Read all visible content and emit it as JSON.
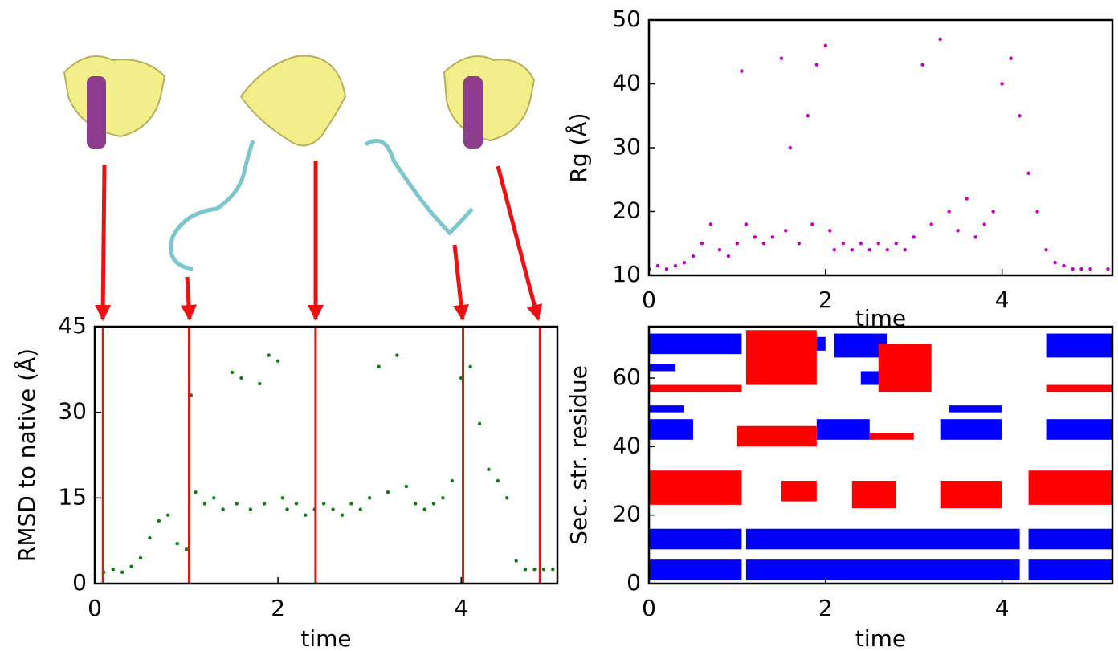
{
  "chart_data": [
    {
      "type": "scatter",
      "ylabel": "Rg (Å)",
      "xlabel": "time",
      "color": "#c000c0",
      "xlim": [
        0,
        5.25
      ],
      "xticks": [
        0,
        2,
        4
      ],
      "ylim": [
        10,
        50
      ],
      "yticks": [
        10,
        20,
        30,
        40,
        50
      ],
      "x": [
        0,
        0.1,
        0.2,
        0.3,
        0.4,
        0.5,
        0.6,
        0.7,
        0.8,
        0.9,
        1.0,
        1.05,
        1.1,
        1.2,
        1.3,
        1.4,
        1.5,
        1.55,
        1.6,
        1.7,
        1.8,
        1.85,
        1.9,
        2.0,
        2.05,
        2.1,
        2.2,
        2.3,
        2.4,
        2.5,
        2.6,
        2.7,
        2.8,
        2.9,
        3.0,
        3.1,
        3.2,
        3.3,
        3.4,
        3.5,
        3.6,
        3.7,
        3.8,
        3.9,
        4.0,
        4.1,
        4.2,
        4.3,
        4.4,
        4.5,
        4.6,
        4.7,
        4.8,
        4.9,
        5.0,
        5.2
      ],
      "values": [
        11,
        11.5,
        11,
        11.5,
        12,
        13,
        15,
        18,
        14,
        13,
        15,
        42,
        18,
        16,
        15,
        16,
        44,
        17,
        30,
        15,
        35,
        18,
        43,
        46,
        17,
        14,
        15,
        14,
        15,
        14,
        15,
        14,
        15,
        14,
        16,
        43,
        18,
        47,
        20,
        17,
        22,
        16,
        18,
        20,
        40,
        44,
        35,
        26,
        20,
        14,
        12,
        11.5,
        11,
        11,
        11,
        11
      ]
    },
    {
      "type": "scatter",
      "ylabel": "RMSD to native (Å)",
      "xlabel": "time",
      "color": "#117a11",
      "xlim": [
        0,
        5.05
      ],
      "xticks": [
        0,
        2,
        4
      ],
      "ylim": [
        0,
        45
      ],
      "yticks": [
        0,
        15,
        30,
        45
      ],
      "vlines": [
        0.09,
        1.03,
        2.41,
        4.02,
        4.86
      ],
      "vline_color": "#ee1111",
      "x": [
        0,
        0.1,
        0.2,
        0.3,
        0.4,
        0.5,
        0.6,
        0.7,
        0.8,
        0.9,
        1.0,
        1.05,
        1.1,
        1.2,
        1.3,
        1.4,
        1.5,
        1.55,
        1.6,
        1.7,
        1.8,
        1.85,
        1.9,
        2.0,
        2.05,
        2.1,
        2.2,
        2.3,
        2.4,
        2.5,
        2.6,
        2.7,
        2.8,
        2.9,
        3.0,
        3.1,
        3.2,
        3.3,
        3.4,
        3.5,
        3.6,
        3.7,
        3.8,
        3.9,
        4.0,
        4.1,
        4.2,
        4.3,
        4.4,
        4.5,
        4.6,
        4.7,
        4.8,
        4.9,
        5.0
      ],
      "values": [
        1.5,
        2,
        2.5,
        2,
        3,
        4.5,
        8,
        11,
        12,
        7,
        6,
        33,
        16,
        14,
        15,
        13,
        37,
        14,
        36,
        13,
        35,
        14,
        40,
        39,
        15,
        13,
        14,
        12,
        13,
        14,
        13,
        12,
        14,
        13,
        15,
        38,
        16,
        40,
        17,
        14,
        13,
        14,
        15,
        18,
        36,
        38,
        28,
        20,
        18,
        15,
        4,
        2.5,
        2.5,
        2.5,
        2.5
      ]
    },
    {
      "type": "heatmap",
      "ylabel": "Sec. str. residue",
      "xlabel": "time",
      "xlim": [
        0,
        5.25
      ],
      "xticks": [
        0,
        2,
        4
      ],
      "ylim": [
        0,
        75
      ],
      "yticks": [
        0,
        20,
        40,
        60
      ],
      "series": [
        {
          "color": "#0000ff",
          "rects": [
            [
              0,
              1.05,
              1,
              7
            ],
            [
              1.1,
              4.2,
              1,
              7
            ],
            [
              0,
              1.05,
              10,
              16
            ],
            [
              1.1,
              4.2,
              10,
              16
            ],
            [
              4.3,
              5.25,
              1,
              7
            ],
            [
              4.3,
              5.25,
              10,
              16
            ],
            [
              0,
              0.5,
              42,
              48
            ],
            [
              1.9,
              2.5,
              42,
              48
            ],
            [
              3.3,
              4.0,
              42,
              48
            ],
            [
              4.5,
              5.25,
              42,
              48
            ],
            [
              0,
              0.4,
              50,
              52
            ],
            [
              3.4,
              4.0,
              50,
              52
            ],
            [
              0,
              1.05,
              67,
              73
            ],
            [
              1.6,
              2.0,
              68,
              72
            ],
            [
              2.1,
              2.7,
              66,
              73
            ],
            [
              2.4,
              2.7,
              58,
              62
            ],
            [
              4.5,
              5.25,
              66,
              73
            ],
            [
              0,
              0.3,
              62,
              64
            ]
          ]
        },
        {
          "color": "#ff0000",
          "rects": [
            [
              0,
              1.05,
              23,
              33
            ],
            [
              1.5,
              1.9,
              24,
              30
            ],
            [
              2.3,
              2.8,
              22,
              30
            ],
            [
              3.3,
              4.0,
              22,
              30
            ],
            [
              4.3,
              5.25,
              23,
              33
            ],
            [
              0,
              1.05,
              56,
              58
            ],
            [
              4.5,
              5.25,
              56,
              58
            ],
            [
              1.0,
              1.9,
              40,
              46
            ],
            [
              2.5,
              3.0,
              42,
              44
            ],
            [
              1.1,
              1.9,
              58,
              74
            ],
            [
              2.6,
              3.2,
              56,
              70
            ]
          ]
        }
      ]
    }
  ]
}
